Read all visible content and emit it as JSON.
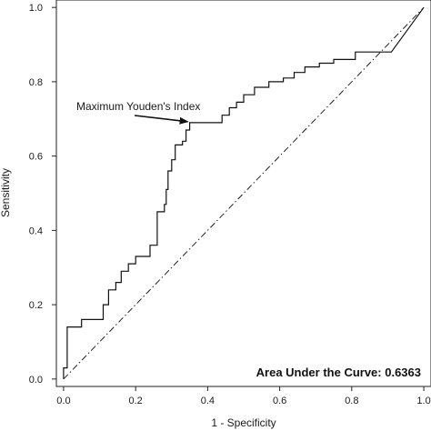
{
  "chart_data": {
    "type": "line",
    "xlabel": "1 - Specificity",
    "ylabel": "Sensitivity",
    "xlim": [
      -0.02,
      1.02
    ],
    "ylim": [
      -0.02,
      1.02
    ],
    "x_ticks": [
      0.0,
      0.2,
      0.4,
      0.6,
      0.8,
      1.0
    ],
    "x_tick_labels": [
      "0.0",
      "0.2",
      "0.4",
      "0.6",
      "0.8",
      "1.0"
    ],
    "y_ticks": [
      0.0,
      0.2,
      0.4,
      0.6,
      0.8,
      1.0
    ],
    "y_tick_labels": [
      "0.0",
      "0.2",
      "0.4",
      "0.6",
      "0.8",
      "1.0"
    ],
    "grid": false,
    "annotation": "Maximum Youden's Index",
    "annotation_point": [
      0.35,
      0.69
    ],
    "auc_label": "Area Under the Curve: 0.6363",
    "reference_line": {
      "x": [
        0,
        1
      ],
      "y": [
        0,
        1
      ],
      "style": "dash-dot"
    },
    "series": [
      {
        "x": [
          0.0,
          0.0,
          0.01,
          0.01,
          0.05,
          0.05,
          0.11,
          0.11,
          0.125,
          0.125,
          0.145,
          0.145,
          0.16,
          0.16,
          0.18,
          0.18,
          0.2,
          0.2,
          0.24,
          0.24,
          0.26,
          0.26,
          0.28,
          0.28,
          0.285,
          0.285,
          0.29,
          0.29,
          0.3,
          0.3,
          0.31,
          0.31,
          0.33,
          0.33,
          0.34,
          0.34,
          0.35,
          0.35,
          0.44,
          0.44,
          0.46,
          0.46,
          0.48,
          0.48,
          0.5,
          0.5,
          0.53,
          0.53,
          0.57,
          0.57,
          0.61,
          0.61,
          0.64,
          0.64,
          0.67,
          0.67,
          0.71,
          0.71,
          0.75,
          0.75,
          0.81,
          0.81,
          0.91,
          1.0
        ],
        "y": [
          0.0,
          0.03,
          0.03,
          0.14,
          0.14,
          0.16,
          0.16,
          0.2,
          0.2,
          0.24,
          0.24,
          0.26,
          0.26,
          0.29,
          0.29,
          0.31,
          0.31,
          0.33,
          0.33,
          0.36,
          0.36,
          0.45,
          0.45,
          0.47,
          0.47,
          0.51,
          0.51,
          0.56,
          0.56,
          0.59,
          0.59,
          0.63,
          0.63,
          0.64,
          0.64,
          0.67,
          0.67,
          0.69,
          0.69,
          0.71,
          0.71,
          0.73,
          0.73,
          0.745,
          0.745,
          0.765,
          0.765,
          0.785,
          0.785,
          0.8,
          0.8,
          0.81,
          0.81,
          0.825,
          0.825,
          0.84,
          0.84,
          0.85,
          0.85,
          0.86,
          0.86,
          0.88,
          0.88,
          1.0
        ]
      }
    ]
  }
}
